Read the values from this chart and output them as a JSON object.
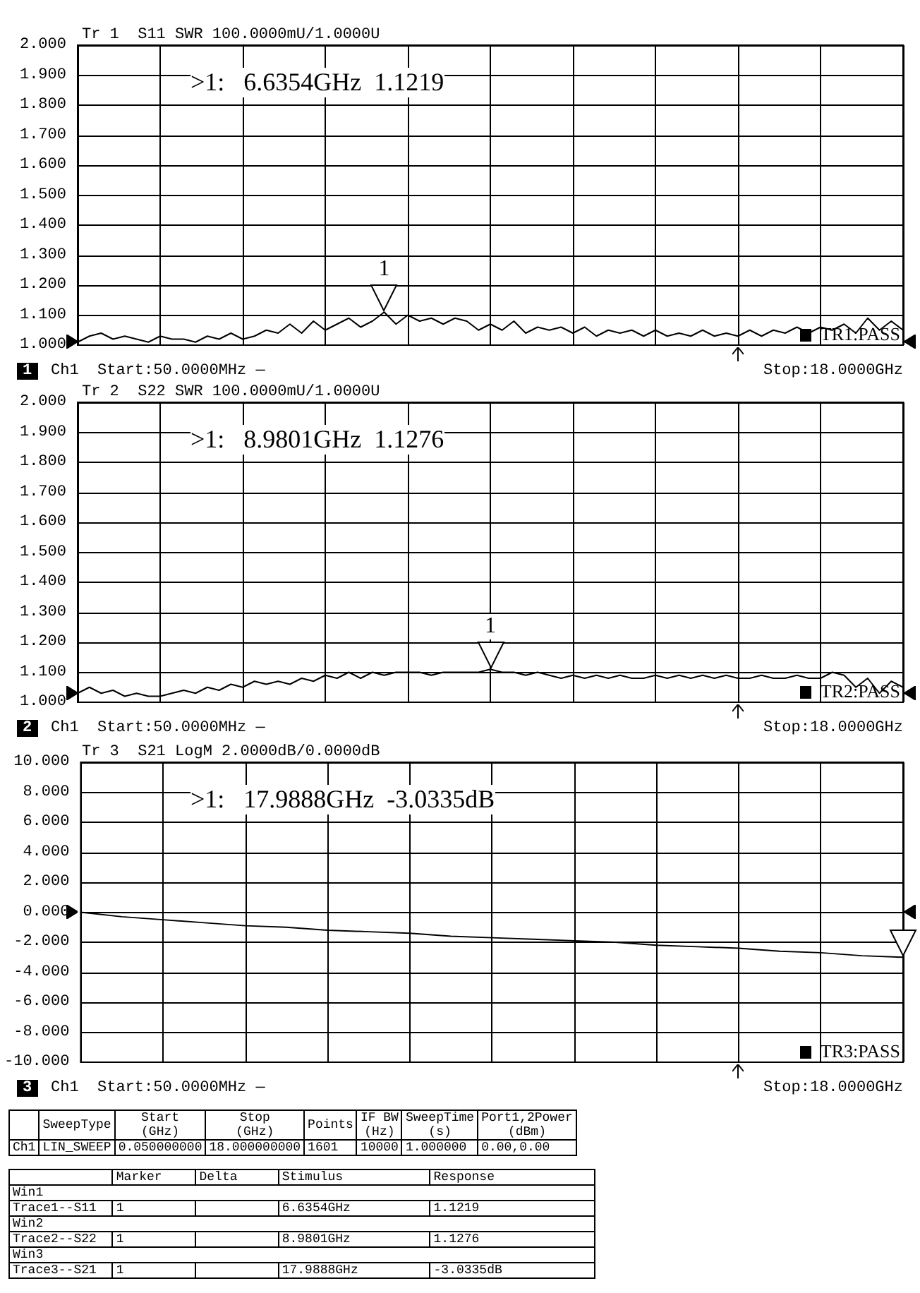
{
  "chart_data": [
    {
      "type": "line",
      "title": "Tr 1  S11 SWR 100.0000mU/1.0000U",
      "grid": true,
      "tick_labels": "y",
      "marker": "none",
      "categories": [
        null,
        null,
        null,
        null,
        null,
        null,
        null,
        null,
        null,
        null,
        null,
        null,
        null,
        null,
        null,
        null,
        null,
        null,
        null,
        null,
        null,
        null,
        null,
        null,
        null,
        null,
        null,
        null,
        null,
        null,
        null,
        null,
        null,
        null,
        null,
        null,
        null,
        null,
        null,
        null,
        null,
        null,
        null,
        null,
        null,
        null,
        null,
        null,
        null,
        null,
        null,
        null,
        null,
        null,
        null,
        null,
        null,
        null,
        null,
        null,
        null,
        null,
        null,
        null,
        null,
        null,
        null,
        null,
        null,
        null,
        null
      ],
      "series": [
        {
          "color": "#000000",
          "values": [
            1.01,
            1.03,
            1.04,
            1.02,
            1.03,
            1.02,
            1.01,
            1.03,
            1.02,
            1.02,
            1.01,
            1.03,
            1.02,
            1.04,
            1.02,
            1.03,
            1.05,
            1.04,
            1.07,
            1.04,
            1.08,
            1.05,
            1.07,
            1.09,
            1.06,
            1.08,
            1.11,
            1.07,
            1.1,
            1.08,
            1.09,
            1.07,
            1.09,
            1.08,
            1.05,
            1.07,
            1.05,
            1.08,
            1.04,
            1.06,
            1.05,
            1.06,
            1.04,
            1.06,
            1.03,
            1.05,
            1.04,
            1.05,
            1.03,
            1.05,
            1.03,
            1.04,
            1.03,
            1.05,
            1.03,
            1.04,
            1.03,
            1.05,
            1.03,
            1.05,
            1.04,
            1.06,
            1.04,
            1.06,
            1.05,
            1.07,
            1.04,
            1.09,
            1.05,
            1.08,
            1.05
          ]
        }
      ],
      "ylim": [
        1,
        2
      ],
      "yticks": [
        {
          "value": 1,
          "label": "1.000"
        },
        {
          "value": 1.1,
          "label": "1.100"
        },
        {
          "value": 1.2,
          "label": "1.200"
        },
        {
          "value": 1.3,
          "label": "1.300"
        },
        {
          "value": 1.4,
          "label": "1.400"
        },
        {
          "value": 1.5,
          "label": "1.500"
        },
        {
          "value": 1.6,
          "label": "1.600"
        },
        {
          "value": 1.7,
          "label": "1.700"
        },
        {
          "value": 1.8,
          "label": "1.800"
        },
        {
          "value": 1.9,
          "label": "1.900"
        },
        {
          "value": 2,
          "label": "2.000"
        }
      ],
      "annotations": [
        ">1:   6.6354GHz  1.1219",
        "1",
        "1",
        "Ch1  Start:50.0000MHz —",
        "Stop:18.0000GHz",
        "TR1:PASS"
      ]
    },
    {
      "type": "line",
      "title": "Tr 2  S22 SWR 100.0000mU/1.0000U",
      "grid": true,
      "tick_labels": "y",
      "marker": "none",
      "categories": [
        null,
        null,
        null,
        null,
        null,
        null,
        null,
        null,
        null,
        null,
        null,
        null,
        null,
        null,
        null,
        null,
        null,
        null,
        null,
        null,
        null,
        null,
        null,
        null,
        null,
        null,
        null,
        null,
        null,
        null,
        null,
        null,
        null,
        null,
        null,
        null,
        null,
        null,
        null,
        null,
        null,
        null,
        null,
        null,
        null,
        null,
        null,
        null,
        null,
        null,
        null,
        null,
        null,
        null,
        null,
        null,
        null,
        null,
        null,
        null,
        null,
        null,
        null,
        null,
        null,
        null,
        null,
        null,
        null,
        null,
        null
      ],
      "series": [
        {
          "color": "#000000",
          "values": [
            1.03,
            1.05,
            1.03,
            1.04,
            1.02,
            1.03,
            1.02,
            1.02,
            1.03,
            1.04,
            1.03,
            1.05,
            1.04,
            1.06,
            1.05,
            1.07,
            1.06,
            1.07,
            1.06,
            1.08,
            1.07,
            1.09,
            1.08,
            1.1,
            1.08,
            1.1,
            1.09,
            1.1,
            1.1,
            1.1,
            1.09,
            1.1,
            1.1,
            1.1,
            1.1,
            1.11,
            1.1,
            1.1,
            1.09,
            1.1,
            1.09,
            1.08,
            1.09,
            1.08,
            1.09,
            1.08,
            1.09,
            1.08,
            1.08,
            1.09,
            1.08,
            1.09,
            1.08,
            1.09,
            1.08,
            1.09,
            1.08,
            1.08,
            1.09,
            1.08,
            1.08,
            1.09,
            1.08,
            1.08,
            1.1,
            1.09,
            1.05,
            1.08,
            1.03,
            1.07,
            1.05
          ]
        }
      ],
      "ylim": [
        1,
        2
      ],
      "yticks": [
        {
          "value": 1,
          "label": "1.000"
        },
        {
          "value": 1.1,
          "label": "1.100"
        },
        {
          "value": 1.2,
          "label": "1.200"
        },
        {
          "value": 1.3,
          "label": "1.300"
        },
        {
          "value": 1.4,
          "label": "1.400"
        },
        {
          "value": 1.5,
          "label": "1.500"
        },
        {
          "value": 1.6,
          "label": "1.600"
        },
        {
          "value": 1.7,
          "label": "1.700"
        },
        {
          "value": 1.8,
          "label": "1.800"
        },
        {
          "value": 1.9,
          "label": "1.900"
        },
        {
          "value": 2,
          "label": "2.000"
        }
      ],
      "annotations": [
        ">1:   8.9801GHz  1.1276",
        "1",
        "2",
        "Ch1  Start:50.0000MHz —",
        "Stop:18.0000GHz",
        "TR2:PASS"
      ]
    },
    {
      "type": "line",
      "title": "Tr 3  S21 LogM 2.0000dB/0.0000dB",
      "grid": true,
      "tick_labels": "y",
      "marker": "none",
      "categories": [
        null,
        null,
        null,
        null,
        null,
        null,
        null,
        null,
        null,
        null,
        null,
        null,
        null,
        null,
        null,
        null,
        null,
        null,
        null,
        null,
        null
      ],
      "series": [
        {
          "color": "#000000",
          "values": [
            0,
            -0.3,
            -0.5,
            -0.7,
            -0.9,
            -1.0,
            -1.2,
            -1.3,
            -1.4,
            -1.6,
            -1.7,
            -1.8,
            -1.9,
            -2.0,
            -2.2,
            -2.3,
            -2.4,
            -2.6,
            -2.7,
            -2.9,
            -3.0
          ]
        }
      ],
      "ylim": [
        -10,
        10
      ],
      "yticks": [
        {
          "value": -10,
          "label": "-10.000"
        },
        {
          "value": -8,
          "label": "-8.000"
        },
        {
          "value": -6,
          "label": "-6.000"
        },
        {
          "value": -4,
          "label": "-4.000"
        },
        {
          "value": -2,
          "label": "-2.000"
        },
        {
          "value": 0,
          "label": "0.000"
        },
        {
          "value": 2,
          "label": "2.000"
        },
        {
          "value": 4,
          "label": "4.000"
        },
        {
          "value": 6,
          "label": "6.000"
        },
        {
          "value": 8,
          "label": "8.000"
        },
        {
          "value": 10,
          "label": "10.000"
        }
      ],
      "annotations": [
        ">1:   17.9888GHz  -3.0335dB",
        "3",
        "Ch1  Start:50.0000MHz —",
        "Stop:18.0000GHz",
        "TR3:PASS"
      ]
    },
    {
      "type": "other",
      "annotations": [
        "SweepType",
        "Start\n(GHz)",
        "Stop\n(GHz)",
        "Points",
        "IF BW\n(Hz)",
        "SweepTime\n(s)",
        "Port1,2Power\n(dBm)",
        "Ch1",
        "LIN_SWEEP",
        "0.050000000",
        "18.000000000",
        "1601",
        "10000",
        "1.000000",
        "0.00,0.00",
        "Marker",
        "Delta",
        "Stimulus",
        "Response",
        "Win1",
        "Trace1--S11",
        "1",
        "6.6354GHz",
        "1.1219",
        "Win2",
        "Trace2--S22",
        "1",
        "8.9801GHz",
        "1.1276",
        "Win3",
        "Trace3--S21",
        "1",
        "17.9888GHz",
        "-3.0335dB"
      ]
    }
  ]
}
